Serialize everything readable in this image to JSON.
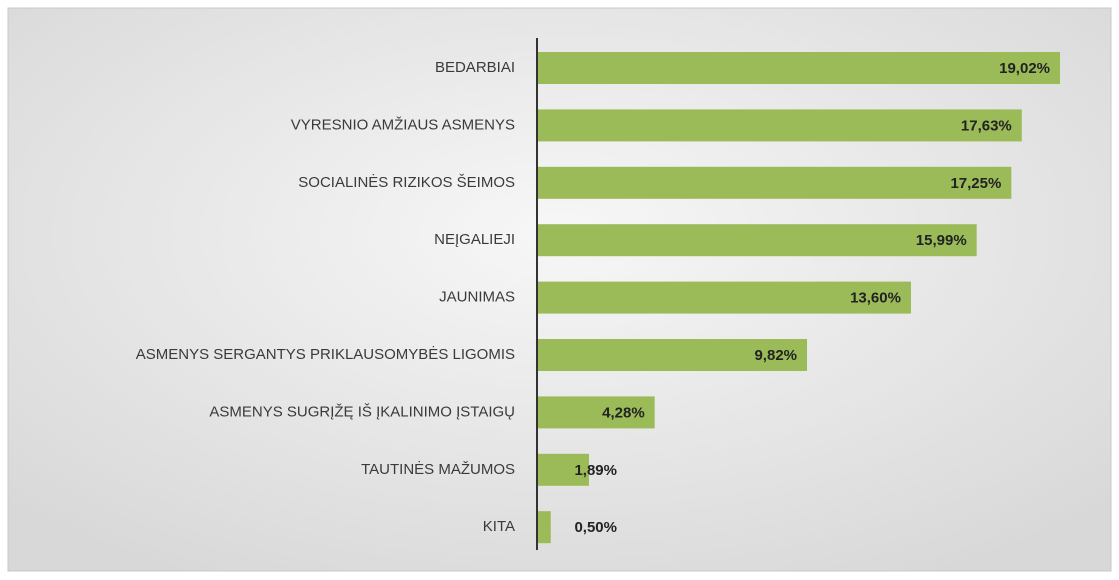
{
  "chart_data": {
    "type": "bar",
    "orientation": "horizontal",
    "color": "#9bbb59",
    "categories": [
      "BEDARBIAI",
      "VYRESNIO AMŽIAUS ASMENYS",
      "SOCIALINĖS RIZIKOS ŠEIMOS",
      "NEĮGALIEJI",
      "JAUNIMAS",
      "ASMENYS SERGANTYS PRIKLAUSOMYBĖS LIGOMIS",
      "ASMENYS SUGRĮŽĘ IŠ ĮKALINIMO ĮSTAIGŲ",
      "TAUTINĖS MAŽUMOS",
      "KITA"
    ],
    "values": [
      19.02,
      17.63,
      17.25,
      15.99,
      13.6,
      9.82,
      4.28,
      1.89,
      0.5
    ],
    "value_labels": [
      "19,02%",
      "17,63%",
      "17,25%",
      "15,99%",
      "13,60%",
      "9,82%",
      "4,28%",
      "1,89%",
      "0,50%"
    ]
  }
}
